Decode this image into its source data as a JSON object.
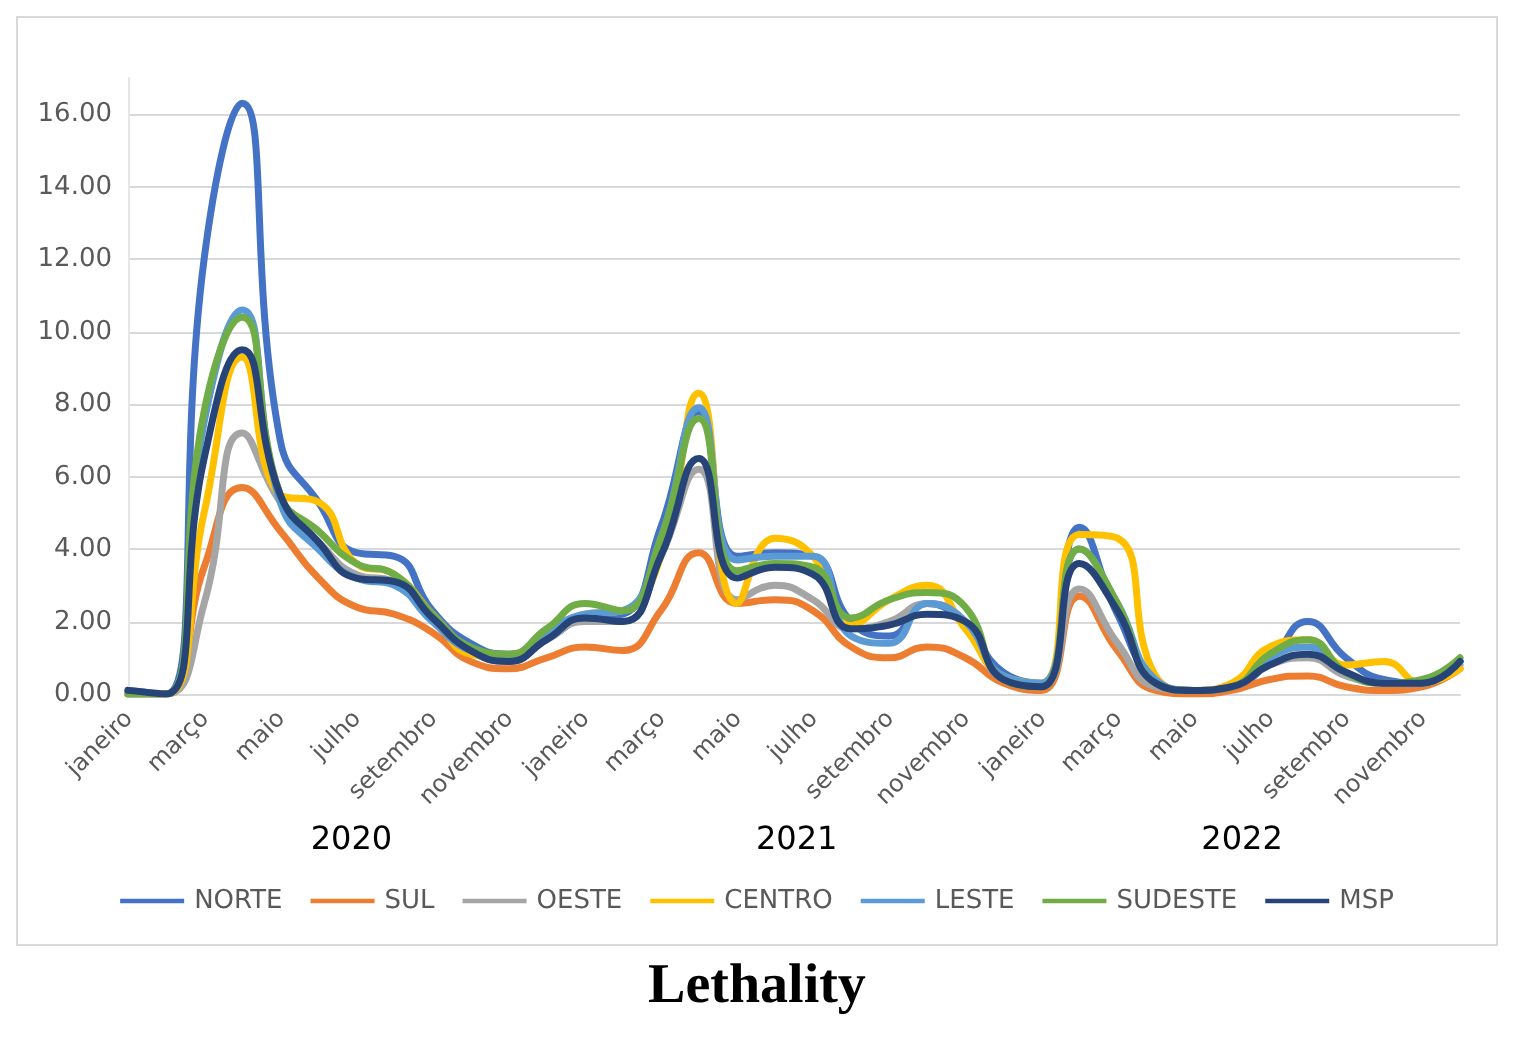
{
  "chart_data": {
    "type": "line",
    "title": "Lethality",
    "categories": [
      "janeiro",
      null,
      "março",
      null,
      "maio",
      null,
      "julho",
      null,
      "setembro",
      null,
      "novembro",
      null,
      "janeiro",
      null,
      "março",
      null,
      "maio",
      null,
      "julho",
      null,
      "setembro",
      null,
      "novembro",
      null,
      "janeiro",
      null,
      "março",
      null,
      "maio",
      null,
      "julho",
      null,
      "setembro",
      null,
      "novembro",
      null
    ],
    "annotations": [
      "2020",
      "2021",
      "2022"
    ],
    "series": [
      {
        "name": "NORTE",
        "color": "#4472c4",
        "values": [
          0.1,
          0,
          12.0,
          16.3,
          7.0,
          5.3,
          3.9,
          3.8,
          2.3,
          1.4,
          1.1,
          1.5,
          2.1,
          2.2,
          4.6,
          7.8,
          3.8,
          3.9,
          3.8,
          2.0,
          1.6,
          2.5,
          1.9,
          0.6,
          0.3,
          4.6,
          2.2,
          0.4,
          0.1,
          0.2,
          0.9,
          2.0,
          1.0,
          0.4,
          0.3,
          0.9
        ]
      },
      {
        "name": "SUL",
        "color": "#ed7d31",
        "values": [
          0,
          0,
          3.5,
          5.7,
          4.5,
          3.2,
          2.4,
          2.2,
          1.7,
          0.9,
          0.7,
          1.0,
          1.3,
          1.2,
          2.3,
          3.9,
          2.5,
          2.6,
          2.3,
          1.3,
          1.0,
          1.3,
          1.0,
          0.3,
          0.1,
          2.7,
          1.2,
          0.1,
          0,
          0.1,
          0.4,
          0.5,
          0.2,
          0.1,
          0.2,
          0.7
        ]
      },
      {
        "name": "OESTE",
        "color": "#a5a5a5",
        "values": [
          0,
          0,
          2.5,
          7.2,
          5.3,
          4.2,
          3.3,
          3.1,
          2.2,
          1.2,
          0.9,
          1.5,
          2.0,
          2.0,
          3.8,
          6.2,
          2.6,
          3.0,
          2.6,
          1.8,
          2.0,
          2.5,
          2.0,
          0.4,
          0.2,
          2.9,
          1.4,
          0.2,
          0.1,
          0.2,
          0.8,
          1.0,
          0.5,
          0.3,
          0.3,
          0.8
        ]
      },
      {
        "name": "CENTRO",
        "color": "#ffc000",
        "values": [
          0,
          0,
          5.0,
          9.3,
          5.5,
          5.3,
          3.6,
          3.3,
          2.2,
          1.1,
          1.0,
          1.6,
          2.2,
          2.3,
          3.8,
          8.3,
          2.5,
          4.3,
          3.8,
          1.9,
          2.6,
          3.0,
          1.8,
          0.5,
          0.3,
          4.4,
          4.3,
          0.5,
          0.1,
          0.3,
          1.3,
          1.5,
          0.8,
          0.9,
          0.3,
          0.7
        ]
      },
      {
        "name": "LESTE",
        "color": "#5b9bd5",
        "values": [
          0,
          0,
          7.5,
          10.6,
          5.3,
          4.0,
          3.2,
          3.0,
          2.0,
          1.2,
          1.0,
          1.7,
          2.2,
          2.3,
          4.3,
          7.9,
          3.7,
          3.8,
          3.8,
          1.6,
          1.4,
          2.5,
          2.0,
          0.5,
          0.3,
          4.0,
          2.5,
          0.4,
          0.1,
          0.2,
          1.0,
          1.3,
          0.6,
          0.3,
          0.3,
          0.9
        ]
      },
      {
        "name": "SUDESTE",
        "color": "#70ad47",
        "values": [
          0,
          0,
          7.8,
          10.4,
          5.5,
          4.5,
          3.6,
          3.3,
          2.2,
          1.3,
          1.1,
          1.8,
          2.5,
          2.3,
          4.3,
          7.6,
          3.4,
          3.6,
          3.5,
          2.1,
          2.6,
          2.8,
          2.4,
          0.4,
          0.2,
          4.0,
          2.5,
          0.3,
          0.1,
          0.2,
          1.1,
          1.5,
          0.6,
          0.3,
          0.4,
          1.0
        ]
      },
      {
        "name": "MSP",
        "color": "#264478",
        "values": [
          0.1,
          0,
          6.5,
          9.5,
          5.5,
          4.2,
          3.2,
          3.1,
          2.1,
          1.2,
          0.9,
          1.5,
          2.1,
          2.0,
          3.8,
          6.5,
          3.2,
          3.5,
          3.3,
          1.8,
          1.9,
          2.2,
          2.0,
          0.4,
          0.2,
          3.6,
          2.3,
          0.3,
          0.1,
          0.2,
          0.8,
          1.1,
          0.6,
          0.3,
          0.3,
          0.9
        ]
      }
    ],
    "ylim": [
      0,
      17
    ],
    "yticks": [
      {
        "value": 0,
        "label": "0.00"
      },
      {
        "value": 2,
        "label": "2.00"
      },
      {
        "value": 4,
        "label": "4.00"
      },
      {
        "value": 6,
        "label": "6.00"
      },
      {
        "value": 8,
        "label": "8.00"
      },
      {
        "value": 10,
        "label": "10.00"
      },
      {
        "value": 12,
        "label": "12.00"
      },
      {
        "value": 14,
        "label": "14.00"
      },
      {
        "value": 16,
        "label": "16.00"
      }
    ],
    "grid": "y",
    "legend": "bottom",
    "marker": "none",
    "line_style": "solid"
  }
}
